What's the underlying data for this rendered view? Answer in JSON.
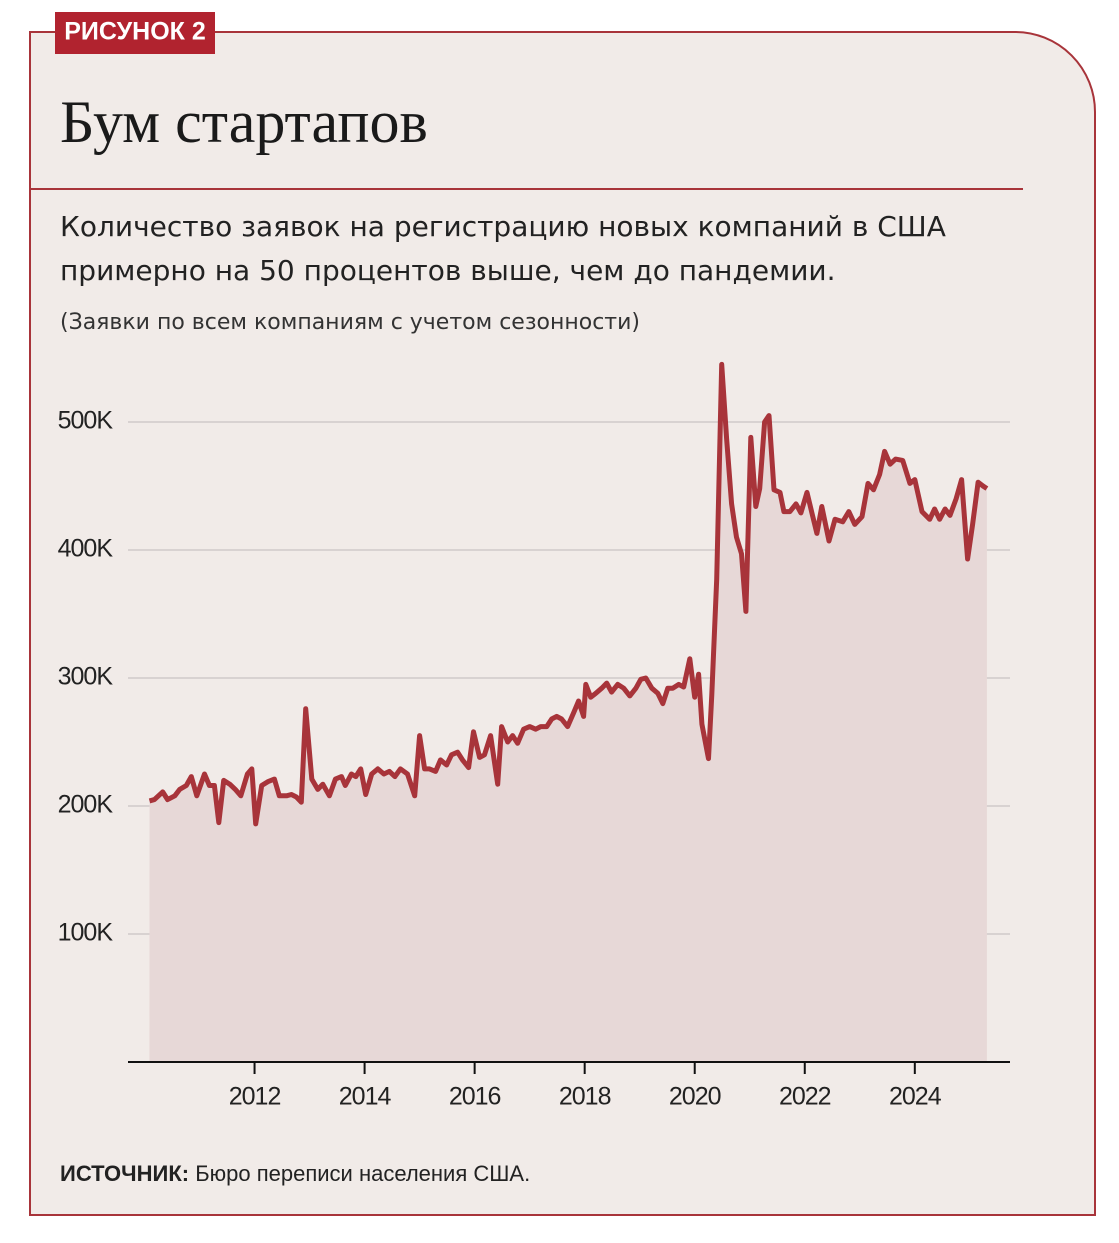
{
  "chart_data": {
    "type": "area",
    "figure_label": "РИСУНОК 2",
    "title": "Бум стартапов",
    "subtitle": [
      "Количество заявок на регистрацию новых компаний в США",
      "примерно на 50 процентов выше, чем до пандемии."
    ],
    "note": "(Заявки по всем компаниям с учетом сезонности)",
    "source": {
      "label": "ИСТОЧНИК:",
      "text": "Бюро переписи населения США."
    },
    "color": "#a8343a",
    "fill": "#e7d8d7",
    "grid": true,
    "xlim": [
      2009.7,
      2025.73
    ],
    "xticks": [
      2012,
      2014,
      2016,
      2018,
      2020,
      2022,
      2024
    ],
    "ylim": [
      0,
      550
    ],
    "yticks": [
      {
        "value": 100,
        "label": "100K"
      },
      {
        "value": 200,
        "label": "200K"
      },
      {
        "value": 300,
        "label": "300K"
      },
      {
        "value": 400,
        "label": "400K"
      },
      {
        "value": 500,
        "label": "500K"
      }
    ],
    "x": [
      2010.09,
      2010.18,
      2010.33,
      2010.42,
      2010.55,
      2010.64,
      2010.76,
      2010.85,
      2010.95,
      2011.09,
      2011.18,
      2011.27,
      2011.35,
      2011.44,
      2011.55,
      2011.65,
      2011.75,
      2011.87,
      2011.95,
      2012.02,
      2012.13,
      2012.24,
      2012.36,
      2012.45,
      2012.58,
      2012.67,
      2012.76,
      2012.85,
      2012.93,
      2013.04,
      2013.15,
      2013.24,
      2013.36,
      2013.47,
      2013.58,
      2013.65,
      2013.76,
      2013.84,
      2013.93,
      2014.02,
      2014.13,
      2014.24,
      2014.35,
      2014.45,
      2014.55,
      2014.65,
      2014.78,
      2014.91,
      2015.0,
      2015.09,
      2015.18,
      2015.29,
      2015.38,
      2015.49,
      2015.58,
      2015.69,
      2015.78,
      2015.89,
      2015.98,
      2016.09,
      2016.18,
      2016.29,
      2016.42,
      2016.49,
      2016.6,
      2016.69,
      2016.78,
      2016.89,
      2017.0,
      2017.11,
      2017.2,
      2017.31,
      2017.4,
      2017.49,
      2017.58,
      2017.69,
      2017.8,
      2017.89,
      2017.98,
      2018.02,
      2018.11,
      2018.2,
      2018.31,
      2018.4,
      2018.49,
      2018.6,
      2018.71,
      2018.82,
      2018.93,
      2019.02,
      2019.11,
      2019.22,
      2019.33,
      2019.42,
      2019.51,
      2019.6,
      2019.71,
      2019.8,
      2019.91,
      2020.0,
      2020.07,
      2020.13,
      2020.25,
      2020.31,
      2020.4,
      2020.49,
      2020.58,
      2020.67,
      2020.76,
      2020.85,
      2020.93,
      2021.02,
      2021.11,
      2021.18,
      2021.27,
      2021.35,
      2021.44,
      2021.55,
      2021.62,
      2021.73,
      2021.84,
      2021.93,
      2022.04,
      2022.13,
      2022.22,
      2022.31,
      2022.44,
      2022.55,
      2022.69,
      2022.8,
      2022.91,
      2023.04,
      2023.15,
      2023.25,
      2023.36,
      2023.45,
      2023.55,
      2023.65,
      2023.78,
      2023.91,
      2024.0,
      2024.13,
      2024.27,
      2024.36,
      2024.45,
      2024.55,
      2024.64,
      2024.75,
      2024.85,
      2024.96,
      2025.05,
      2025.15,
      2025.24,
      2025.31
    ],
    "values": [
      204,
      205,
      211,
      205,
      208,
      213,
      216,
      223,
      208,
      225,
      216,
      216,
      187,
      220,
      217,
      213,
      208,
      225,
      229,
      186,
      216,
      219,
      221,
      208,
      208,
      209,
      207,
      203,
      276,
      221,
      213,
      217,
      208,
      221,
      223,
      216,
      225,
      223,
      229,
      209,
      225,
      229,
      225,
      227,
      223,
      229,
      225,
      208,
      255,
      229,
      229,
      227,
      236,
      232,
      240,
      242,
      236,
      230,
      258,
      238,
      240,
      255,
      217,
      262,
      250,
      255,
      249,
      260,
      262,
      260,
      262,
      262,
      268,
      270,
      268,
      262,
      273,
      282,
      270,
      295,
      285,
      288,
      292,
      296,
      289,
      295,
      292,
      286,
      292,
      299,
      300,
      292,
      288,
      280,
      292,
      292,
      295,
      293,
      315,
      285,
      303,
      264,
      237,
      287,
      377,
      545,
      487,
      436,
      410,
      397,
      352,
      488,
      434,
      448,
      500,
      505,
      447,
      445,
      430,
      430,
      436,
      429,
      445,
      429,
      413,
      434,
      407,
      424,
      422,
      430,
      420,
      426,
      452,
      447,
      459,
      477,
      467,
      471,
      470,
      452,
      455,
      430,
      424,
      432,
      424,
      432,
      427,
      440,
      455,
      393,
      420,
      453,
      450,
      448
    ]
  }
}
